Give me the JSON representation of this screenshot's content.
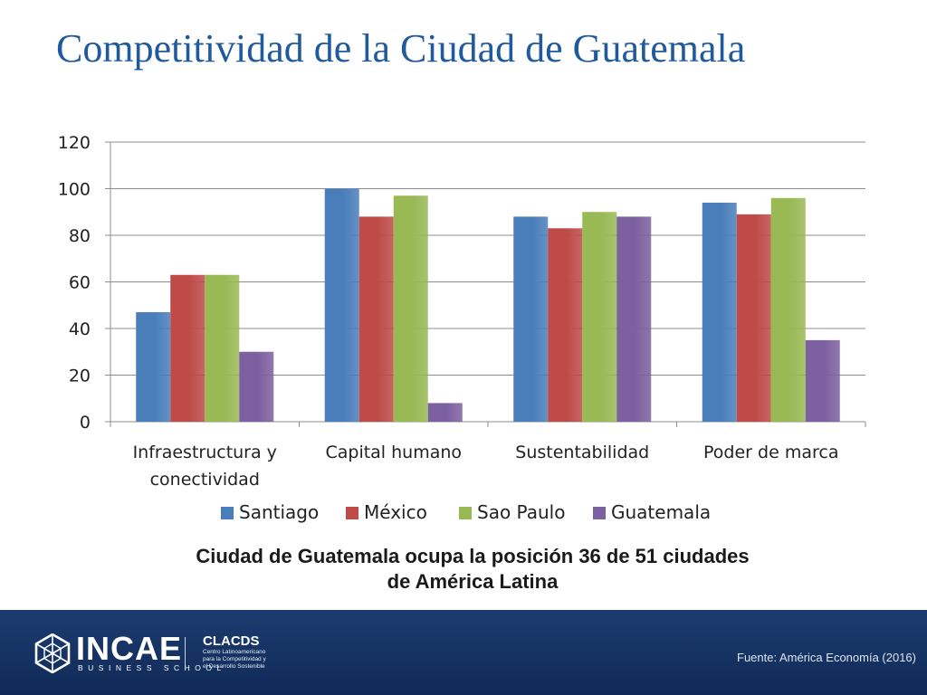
{
  "title": "Competitividad de la Ciudad de Guatemala",
  "chart_data": {
    "type": "bar",
    "categories": [
      [
        "Infraestructura y",
        "conectividad"
      ],
      [
        "Capital humano"
      ],
      [
        "Sustentabilidad"
      ],
      [
        "Poder de marca"
      ]
    ],
    "series": [
      {
        "name": "Santiago",
        "color": "#4A7EBB",
        "values": [
          47,
          100,
          88,
          94
        ]
      },
      {
        "name": "México",
        "color": "#BE4B48",
        "values": [
          63,
          88,
          83,
          89
        ]
      },
      {
        "name": "Sao Paulo",
        "color": "#98B954",
        "values": [
          63,
          97,
          90,
          96
        ]
      },
      {
        "name": "Guatemala",
        "color": "#7D60A0",
        "values": [
          30,
          8,
          88,
          35
        ]
      }
    ],
    "ylim": [
      0,
      120
    ],
    "yticks": [
      0,
      20,
      40,
      60,
      80,
      100,
      120
    ],
    "grid": true,
    "legend_position": "bottom"
  },
  "caption": {
    "line1": "Ciudad de Guatemala ocupa la posición 36 de 51 ciudades",
    "line2": "de América Latina"
  },
  "footer": {
    "brand": "INCAE",
    "brand_sub": "BUSINESS SCHOOL",
    "partner": "CLACDS",
    "partner_lines": [
      "Centro Latinoamericano",
      "para la Competitividad y",
      "el Desarrollo Sostenible"
    ],
    "source": "Fuente: América Economía (2016)"
  }
}
